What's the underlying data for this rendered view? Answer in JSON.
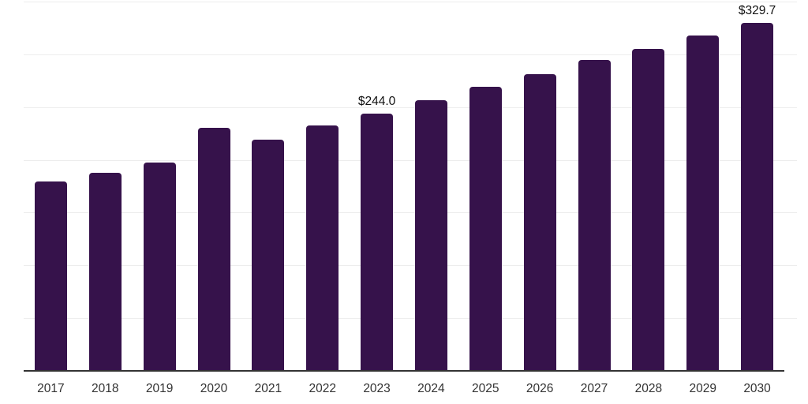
{
  "chart_data": {
    "type": "bar",
    "title": "",
    "xlabel": "",
    "ylabel": "",
    "categories": [
      "2017",
      "2018",
      "2019",
      "2020",
      "2021",
      "2022",
      "2023",
      "2024",
      "2025",
      "2026",
      "2027",
      "2028",
      "2029",
      "2030"
    ],
    "values": [
      179.5,
      187.7,
      197.6,
      230.5,
      219.2,
      232.4,
      244.0,
      256.4,
      268.9,
      281.3,
      294.6,
      305.4,
      317.8,
      329.7
    ],
    "value_prefix": "$",
    "labeled_points": [
      {
        "category": "2023",
        "label": "$244.0"
      },
      {
        "category": "2030",
        "label": "$329.7"
      }
    ],
    "ylim": [
      0,
      350
    ],
    "gridline_step": 50,
    "grid": "on",
    "y_axis_labels": "none",
    "legend": "none",
    "colors": {
      "bar": "#36124B",
      "axis": "#333333",
      "grid": "#EDEDED",
      "value_label": "#111111",
      "tick_label": "#333333",
      "background": "#FFFFFF"
    }
  }
}
